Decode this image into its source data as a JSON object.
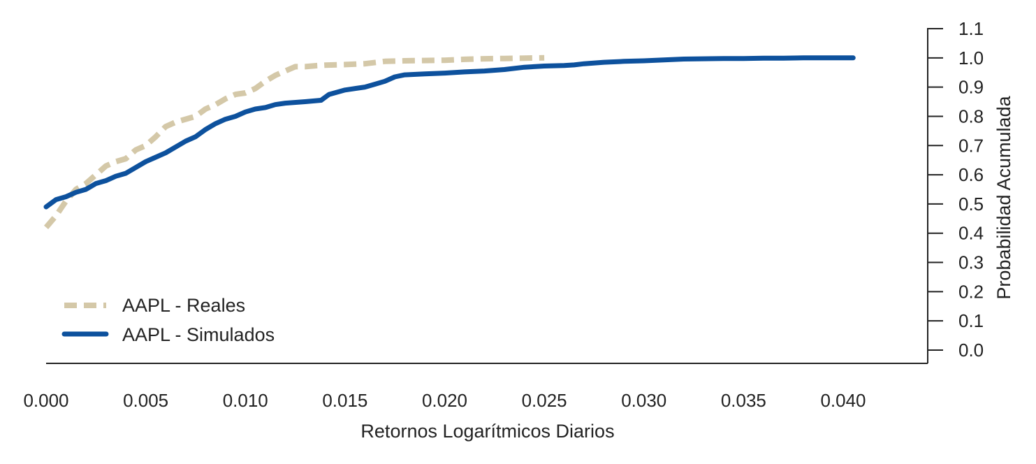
{
  "chart_data": {
    "type": "line",
    "title": "",
    "xlabel": "Retornos Logarítmicos Diarios",
    "ylabel": "Probabilidad Acumulada",
    "xlim": [
      0,
      0.0445
    ],
    "ylim": [
      -0.05,
      1.12
    ],
    "x_ticks": [
      0.0,
      0.005,
      0.01,
      0.015,
      0.02,
      0.025,
      0.03,
      0.035,
      0.04
    ],
    "x_tick_labels": [
      "0.000",
      "0.005",
      "0.010",
      "0.015",
      "0.020",
      "0.025",
      "0.030",
      "0.035",
      "0.040"
    ],
    "y_ticks": [
      0.0,
      0.1,
      0.2,
      0.3,
      0.4,
      0.5,
      0.6,
      0.7,
      0.8,
      0.9,
      1.0,
      1.1
    ],
    "y_tick_labels": [
      "0.0",
      "0.1",
      "0.2",
      "0.3",
      "0.4",
      "0.5",
      "0.6",
      "0.7",
      "0.8",
      "0.9",
      "1.0",
      "1.1"
    ],
    "y_axis_side": "right",
    "grid": false,
    "legend_position": "bottom-left",
    "series": [
      {
        "name": "AAPL - Reales",
        "color": "#d4c8a8",
        "dash": "dashed",
        "x": [
          0.0,
          0.0005,
          0.001,
          0.0015,
          0.002,
          0.0025,
          0.003,
          0.0035,
          0.004,
          0.0045,
          0.005,
          0.0055,
          0.006,
          0.0065,
          0.007,
          0.0075,
          0.008,
          0.0085,
          0.009,
          0.0095,
          0.01,
          0.0105,
          0.011,
          0.0115,
          0.012,
          0.0125,
          0.013,
          0.0135,
          0.014,
          0.015,
          0.016,
          0.017,
          0.018,
          0.019,
          0.02,
          0.021,
          0.022,
          0.023,
          0.024,
          0.025
        ],
        "y": [
          0.42,
          0.46,
          0.51,
          0.55,
          0.57,
          0.6,
          0.63,
          0.645,
          0.655,
          0.685,
          0.7,
          0.73,
          0.765,
          0.78,
          0.79,
          0.8,
          0.825,
          0.84,
          0.86,
          0.875,
          0.88,
          0.895,
          0.92,
          0.94,
          0.955,
          0.97,
          0.97,
          0.973,
          0.975,
          0.977,
          0.98,
          0.988,
          0.99,
          0.991,
          0.992,
          0.995,
          0.997,
          0.998,
          0.999,
          1.0
        ]
      },
      {
        "name": "AAPL - Simulados",
        "color": "#0d519d",
        "dash": "solid",
        "x": [
          0.0,
          0.0005,
          0.001,
          0.0015,
          0.002,
          0.0025,
          0.003,
          0.0035,
          0.004,
          0.0045,
          0.005,
          0.0055,
          0.006,
          0.0065,
          0.007,
          0.0075,
          0.008,
          0.0085,
          0.009,
          0.0095,
          0.01,
          0.0105,
          0.011,
          0.0115,
          0.012,
          0.013,
          0.0138,
          0.0142,
          0.015,
          0.016,
          0.0165,
          0.017,
          0.0175,
          0.018,
          0.019,
          0.02,
          0.021,
          0.022,
          0.023,
          0.024,
          0.025,
          0.026,
          0.0265,
          0.027,
          0.028,
          0.029,
          0.03,
          0.031,
          0.032,
          0.033,
          0.034,
          0.035,
          0.036,
          0.037,
          0.038,
          0.039,
          0.0405
        ],
        "y": [
          0.49,
          0.515,
          0.525,
          0.54,
          0.55,
          0.57,
          0.58,
          0.595,
          0.605,
          0.625,
          0.645,
          0.66,
          0.675,
          0.695,
          0.715,
          0.73,
          0.755,
          0.775,
          0.79,
          0.8,
          0.815,
          0.825,
          0.83,
          0.84,
          0.845,
          0.85,
          0.855,
          0.875,
          0.89,
          0.9,
          0.91,
          0.92,
          0.935,
          0.942,
          0.945,
          0.948,
          0.952,
          0.955,
          0.96,
          0.968,
          0.972,
          0.974,
          0.976,
          0.98,
          0.985,
          0.988,
          0.99,
          0.993,
          0.996,
          0.997,
          0.998,
          0.998,
          0.999,
          0.999,
          1.0,
          1.0,
          1.0
        ]
      }
    ]
  }
}
